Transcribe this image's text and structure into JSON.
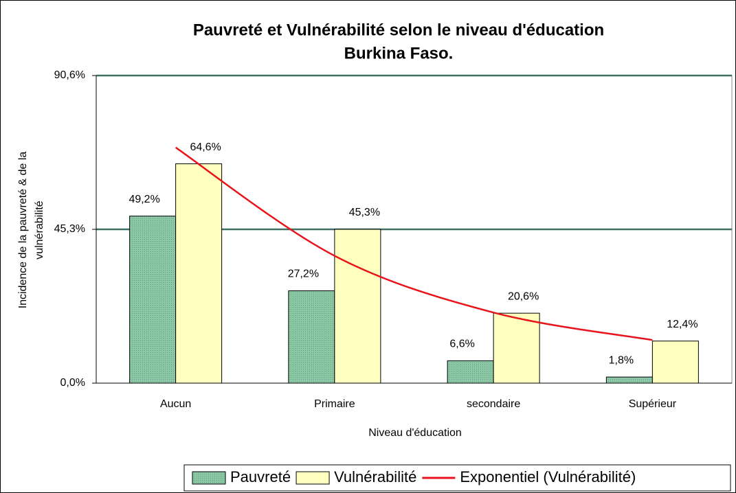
{
  "chart_data": {
    "type": "bar",
    "title": "Pauvreté et Vulnérabilité selon le niveau d'éducation",
    "subtitle": "Burkina Faso.",
    "x_label": "Niveau d'éducation",
    "y_label": [
      "Incidence de la pauvreté & de la",
      "vulnérabilité"
    ],
    "categories": [
      "Aucun",
      "Primaire",
      "secondaire",
      "Supérieur"
    ],
    "series": [
      {
        "name": "Pauvreté",
        "type": "bar",
        "color": "#8cc7a6",
        "values": [
          49.2,
          27.2,
          6.6,
          1.8
        ],
        "value_labels": [
          "49,2%",
          "27,2%",
          "6,6%",
          "1,8%"
        ]
      },
      {
        "name": "Vulnérabilité",
        "type": "bar",
        "color": "#ffffc0",
        "values": [
          64.6,
          45.3,
          20.6,
          12.4
        ],
        "value_labels": [
          "64,6%",
          "45,3%",
          "20,6%",
          "12,4%"
        ]
      },
      {
        "name": "Exponentiel (Vulnérabilité)",
        "type": "line",
        "color": "#e8131b",
        "values": [
          69.4,
          37.5,
          20.8,
          12.7
        ]
      }
    ],
    "ylim": [
      0,
      90.6
    ],
    "yticks": [
      {
        "value": 0,
        "label": "0,0%"
      },
      {
        "value": 45.3,
        "label": "45,3%"
      },
      {
        "value": 90.6,
        "label": "90,6%"
      }
    ],
    "grid": true,
    "legend": "bottom-right"
  }
}
